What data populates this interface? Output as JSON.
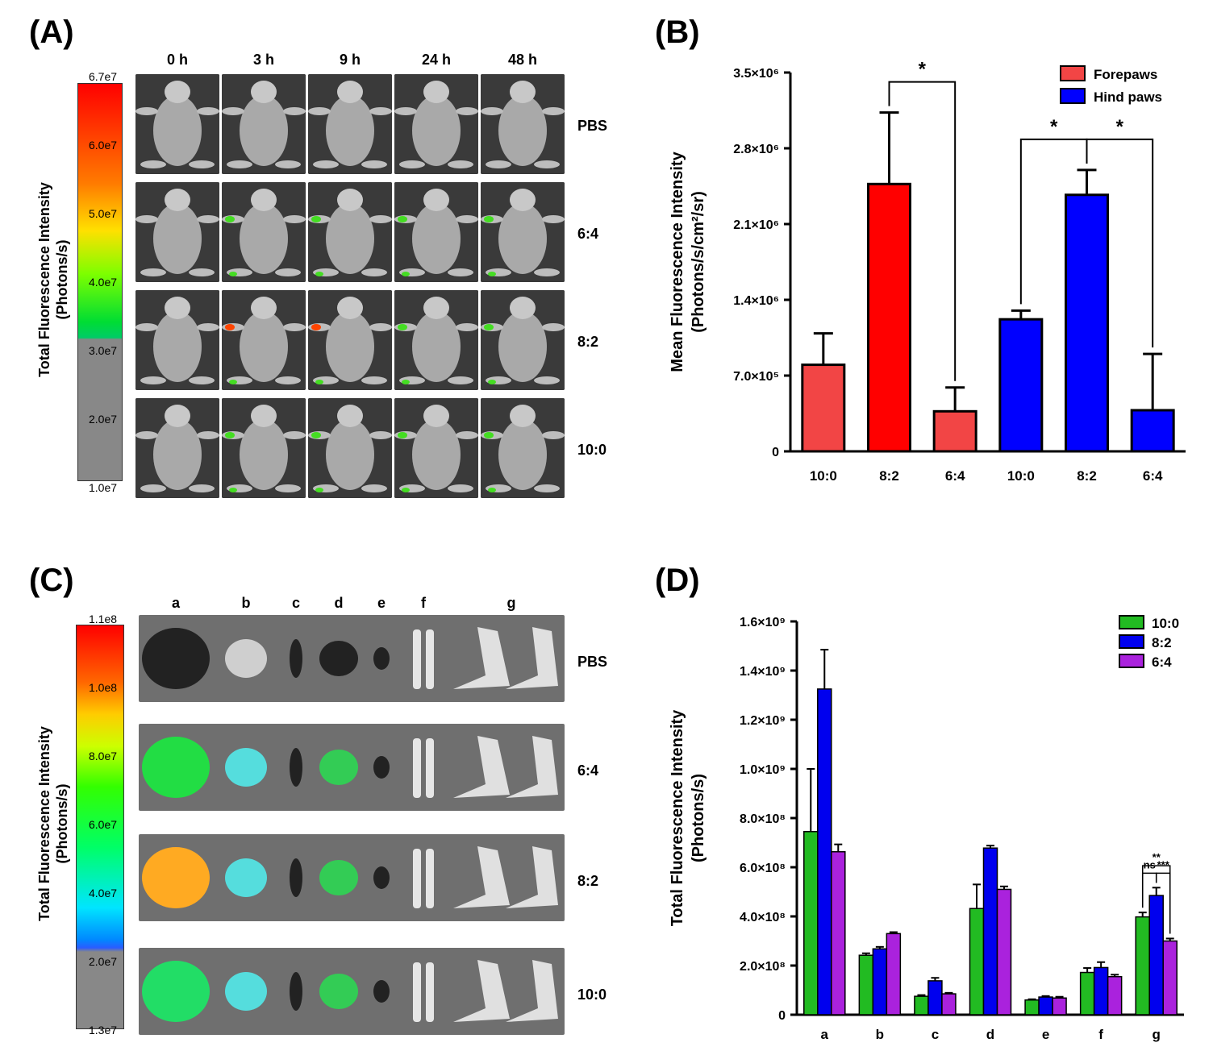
{
  "panels": {
    "A": {
      "letter": "(A)",
      "colorbar_ticks": [
        "6.7e7",
        "6.0e7",
        "5.0e7",
        "4.0e7",
        "3.0e7",
        "2.0e7",
        "1.0e7"
      ],
      "colorbar_label": "Total Fluorescence Intensity",
      "colorbar_unit": "(Photons/s)",
      "columns": [
        "0 h",
        "3 h",
        "9 h",
        "24 h",
        "48 h"
      ],
      "rows": [
        "PBS",
        "6:4",
        "8:2",
        "10:0"
      ]
    },
    "C": {
      "letter": "(C)",
      "colorbar_ticks": [
        "1.1e8",
        "1.0e8",
        "8.0e7",
        "6.0e7",
        "4.0e7",
        "2.0e7",
        "1.3e7"
      ],
      "colorbar_label": "Total Fluorescence Intensity",
      "colorbar_unit": "(Photons/s)",
      "organs": [
        "a",
        "b",
        "c",
        "d",
        "e",
        "f",
        "g"
      ],
      "rows": [
        "PBS",
        "6:4",
        "8:2",
        "10:0"
      ]
    },
    "B": {
      "letter": "(B)"
    },
    "D": {
      "letter": "(D)"
    }
  },
  "chart_data": [
    {
      "panel": "B",
      "type": "bar",
      "ylabel": "Mean Fluorescence Intensity",
      "ylabel_unit": "(Photons/s/cm²/sr)",
      "ylim": [
        0,
        3500000
      ],
      "yticks": [
        {
          "value": 0,
          "label": "0"
        },
        {
          "value": 700000,
          "label": "7.0×10⁵"
        },
        {
          "value": 1400000,
          "label": "1.4×10⁶"
        },
        {
          "value": 2100000,
          "label": "2.1×10⁶"
        },
        {
          "value": 2800000,
          "label": "2.8×10⁶"
        },
        {
          "value": 3500000,
          "label": "3.5×10⁶"
        }
      ],
      "categories": [
        "10:0",
        "8:2",
        "6:4",
        "10:0",
        "8:2",
        "6:4"
      ],
      "bars": [
        {
          "series": "Forepaws",
          "value": 800000,
          "error": 290000
        },
        {
          "series": "Forepaws",
          "value": 2470000,
          "error": 660000
        },
        {
          "series": "Forepaws",
          "value": 370000,
          "error": 220000
        },
        {
          "series": "Hind paws",
          "value": 1220000,
          "error": 80000
        },
        {
          "series": "Hind paws",
          "value": 2370000,
          "error": 230000
        },
        {
          "series": "Hind paws",
          "value": 380000,
          "error": 520000
        }
      ],
      "series": [
        {
          "name": "Forepaws",
          "colors": [
            "#f24545",
            "#ff0000",
            "#f24545"
          ]
        },
        {
          "name": "Hind paws",
          "color": "#0000ff"
        }
      ],
      "legend": "top-right",
      "annotations": [
        {
          "from": 1,
          "to": 2,
          "label": "*"
        },
        {
          "from": 3,
          "to": 4,
          "label": "*"
        },
        {
          "from": 4,
          "to": 5,
          "label": "*"
        }
      ]
    },
    {
      "panel": "D",
      "type": "bar",
      "ylabel": "Total Fluorescence Intensity",
      "ylabel_unit": "(Photons/s)",
      "ylim": [
        0,
        1600000000
      ],
      "yticks": [
        {
          "value": 0,
          "label": "0"
        },
        {
          "value": 200000000,
          "label": "2.0×10⁸"
        },
        {
          "value": 400000000,
          "label": "4.0×10⁸"
        },
        {
          "value": 600000000,
          "label": "6.0×10⁸"
        },
        {
          "value": 800000000,
          "label": "8.0×10⁸"
        },
        {
          "value": 1000000000,
          "label": "1.0×10⁹"
        },
        {
          "value": 1200000000,
          "label": "1.2×10⁹"
        },
        {
          "value": 1400000000,
          "label": "1.4×10⁹"
        },
        {
          "value": 1600000000,
          "label": "1.6×10⁹"
        }
      ],
      "categories": [
        "a",
        "b",
        "c",
        "d",
        "e",
        "f",
        "g"
      ],
      "series": [
        {
          "name": "10:0",
          "color": "#22bb22",
          "values": [
            745000000,
            242000000,
            75000000,
            432000000,
            60000000,
            172000000,
            398000000
          ],
          "errors": [
            255000000,
            8000000,
            5000000,
            98000000,
            3000000,
            18000000,
            18000000
          ]
        },
        {
          "name": "8:2",
          "color": "#0000ee",
          "values": [
            1325000000,
            268000000,
            138000000,
            678000000,
            72000000,
            192000000,
            485000000
          ],
          "errors": [
            160000000,
            8000000,
            12000000,
            10000000,
            4000000,
            22000000,
            32000000
          ]
        },
        {
          "name": "6:4",
          "color": "#aa22dd",
          "values": [
            663000000,
            330000000,
            85000000,
            510000000,
            68000000,
            155000000,
            300000000
          ],
          "errors": [
            30000000,
            6000000,
            4000000,
            12000000,
            5000000,
            8000000,
            10000000
          ]
        }
      ],
      "legend": "top-right",
      "annotations": [
        {
          "category": "g",
          "from": 0,
          "to": 2,
          "label": "**"
        },
        {
          "category": "g",
          "from": 0,
          "to": 1,
          "label": "ns"
        },
        {
          "category": "g",
          "from": 1,
          "to": 2,
          "label": "***"
        }
      ]
    }
  ]
}
